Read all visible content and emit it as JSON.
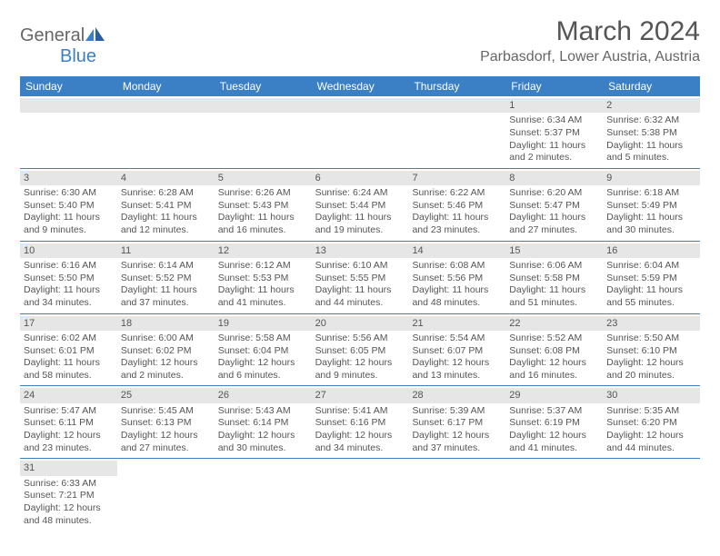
{
  "logo": {
    "textGeneral": "General",
    "textBlue": "Blue"
  },
  "title": "March 2024",
  "location": "Parbasdorf, Lower Austria, Austria",
  "dayHeaders": [
    "Sunday",
    "Monday",
    "Tuesday",
    "Wednesday",
    "Thursday",
    "Friday",
    "Saturday"
  ],
  "colors": {
    "headerBlue": "#3b7fc4",
    "grayBg": "#e6e6e6",
    "text": "#555555"
  },
  "weeks": [
    [
      {
        "day": "",
        "sunrise": "",
        "sunset": "",
        "daylight": ""
      },
      {
        "day": "",
        "sunrise": "",
        "sunset": "",
        "daylight": ""
      },
      {
        "day": "",
        "sunrise": "",
        "sunset": "",
        "daylight": ""
      },
      {
        "day": "",
        "sunrise": "",
        "sunset": "",
        "daylight": ""
      },
      {
        "day": "",
        "sunrise": "",
        "sunset": "",
        "daylight": ""
      },
      {
        "day": "1",
        "sunrise": "Sunrise: 6:34 AM",
        "sunset": "Sunset: 5:37 PM",
        "daylight": "Daylight: 11 hours and 2 minutes."
      },
      {
        "day": "2",
        "sunrise": "Sunrise: 6:32 AM",
        "sunset": "Sunset: 5:38 PM",
        "daylight": "Daylight: 11 hours and 5 minutes."
      }
    ],
    [
      {
        "day": "3",
        "sunrise": "Sunrise: 6:30 AM",
        "sunset": "Sunset: 5:40 PM",
        "daylight": "Daylight: 11 hours and 9 minutes."
      },
      {
        "day": "4",
        "sunrise": "Sunrise: 6:28 AM",
        "sunset": "Sunset: 5:41 PM",
        "daylight": "Daylight: 11 hours and 12 minutes."
      },
      {
        "day": "5",
        "sunrise": "Sunrise: 6:26 AM",
        "sunset": "Sunset: 5:43 PM",
        "daylight": "Daylight: 11 hours and 16 minutes."
      },
      {
        "day": "6",
        "sunrise": "Sunrise: 6:24 AM",
        "sunset": "Sunset: 5:44 PM",
        "daylight": "Daylight: 11 hours and 19 minutes."
      },
      {
        "day": "7",
        "sunrise": "Sunrise: 6:22 AM",
        "sunset": "Sunset: 5:46 PM",
        "daylight": "Daylight: 11 hours and 23 minutes."
      },
      {
        "day": "8",
        "sunrise": "Sunrise: 6:20 AM",
        "sunset": "Sunset: 5:47 PM",
        "daylight": "Daylight: 11 hours and 27 minutes."
      },
      {
        "day": "9",
        "sunrise": "Sunrise: 6:18 AM",
        "sunset": "Sunset: 5:49 PM",
        "daylight": "Daylight: 11 hours and 30 minutes."
      }
    ],
    [
      {
        "day": "10",
        "sunrise": "Sunrise: 6:16 AM",
        "sunset": "Sunset: 5:50 PM",
        "daylight": "Daylight: 11 hours and 34 minutes."
      },
      {
        "day": "11",
        "sunrise": "Sunrise: 6:14 AM",
        "sunset": "Sunset: 5:52 PM",
        "daylight": "Daylight: 11 hours and 37 minutes."
      },
      {
        "day": "12",
        "sunrise": "Sunrise: 6:12 AM",
        "sunset": "Sunset: 5:53 PM",
        "daylight": "Daylight: 11 hours and 41 minutes."
      },
      {
        "day": "13",
        "sunrise": "Sunrise: 6:10 AM",
        "sunset": "Sunset: 5:55 PM",
        "daylight": "Daylight: 11 hours and 44 minutes."
      },
      {
        "day": "14",
        "sunrise": "Sunrise: 6:08 AM",
        "sunset": "Sunset: 5:56 PM",
        "daylight": "Daylight: 11 hours and 48 minutes."
      },
      {
        "day": "15",
        "sunrise": "Sunrise: 6:06 AM",
        "sunset": "Sunset: 5:58 PM",
        "daylight": "Daylight: 11 hours and 51 minutes."
      },
      {
        "day": "16",
        "sunrise": "Sunrise: 6:04 AM",
        "sunset": "Sunset: 5:59 PM",
        "daylight": "Daylight: 11 hours and 55 minutes."
      }
    ],
    [
      {
        "day": "17",
        "sunrise": "Sunrise: 6:02 AM",
        "sunset": "Sunset: 6:01 PM",
        "daylight": "Daylight: 11 hours and 58 minutes."
      },
      {
        "day": "18",
        "sunrise": "Sunrise: 6:00 AM",
        "sunset": "Sunset: 6:02 PM",
        "daylight": "Daylight: 12 hours and 2 minutes."
      },
      {
        "day": "19",
        "sunrise": "Sunrise: 5:58 AM",
        "sunset": "Sunset: 6:04 PM",
        "daylight": "Daylight: 12 hours and 6 minutes."
      },
      {
        "day": "20",
        "sunrise": "Sunrise: 5:56 AM",
        "sunset": "Sunset: 6:05 PM",
        "daylight": "Daylight: 12 hours and 9 minutes."
      },
      {
        "day": "21",
        "sunrise": "Sunrise: 5:54 AM",
        "sunset": "Sunset: 6:07 PM",
        "daylight": "Daylight: 12 hours and 13 minutes."
      },
      {
        "day": "22",
        "sunrise": "Sunrise: 5:52 AM",
        "sunset": "Sunset: 6:08 PM",
        "daylight": "Daylight: 12 hours and 16 minutes."
      },
      {
        "day": "23",
        "sunrise": "Sunrise: 5:50 AM",
        "sunset": "Sunset: 6:10 PM",
        "daylight": "Daylight: 12 hours and 20 minutes."
      }
    ],
    [
      {
        "day": "24",
        "sunrise": "Sunrise: 5:47 AM",
        "sunset": "Sunset: 6:11 PM",
        "daylight": "Daylight: 12 hours and 23 minutes."
      },
      {
        "day": "25",
        "sunrise": "Sunrise: 5:45 AM",
        "sunset": "Sunset: 6:13 PM",
        "daylight": "Daylight: 12 hours and 27 minutes."
      },
      {
        "day": "26",
        "sunrise": "Sunrise: 5:43 AM",
        "sunset": "Sunset: 6:14 PM",
        "daylight": "Daylight: 12 hours and 30 minutes."
      },
      {
        "day": "27",
        "sunrise": "Sunrise: 5:41 AM",
        "sunset": "Sunset: 6:16 PM",
        "daylight": "Daylight: 12 hours and 34 minutes."
      },
      {
        "day": "28",
        "sunrise": "Sunrise: 5:39 AM",
        "sunset": "Sunset: 6:17 PM",
        "daylight": "Daylight: 12 hours and 37 minutes."
      },
      {
        "day": "29",
        "sunrise": "Sunrise: 5:37 AM",
        "sunset": "Sunset: 6:19 PM",
        "daylight": "Daylight: 12 hours and 41 minutes."
      },
      {
        "day": "30",
        "sunrise": "Sunrise: 5:35 AM",
        "sunset": "Sunset: 6:20 PM",
        "daylight": "Daylight: 12 hours and 44 minutes."
      }
    ],
    [
      {
        "day": "31",
        "sunrise": "Sunrise: 6:33 AM",
        "sunset": "Sunset: 7:21 PM",
        "daylight": "Daylight: 12 hours and 48 minutes."
      },
      {
        "day": "",
        "sunrise": "",
        "sunset": "",
        "daylight": ""
      },
      {
        "day": "",
        "sunrise": "",
        "sunset": "",
        "daylight": ""
      },
      {
        "day": "",
        "sunrise": "",
        "sunset": "",
        "daylight": ""
      },
      {
        "day": "",
        "sunrise": "",
        "sunset": "",
        "daylight": ""
      },
      {
        "day": "",
        "sunrise": "",
        "sunset": "",
        "daylight": ""
      },
      {
        "day": "",
        "sunrise": "",
        "sunset": "",
        "daylight": ""
      }
    ]
  ]
}
